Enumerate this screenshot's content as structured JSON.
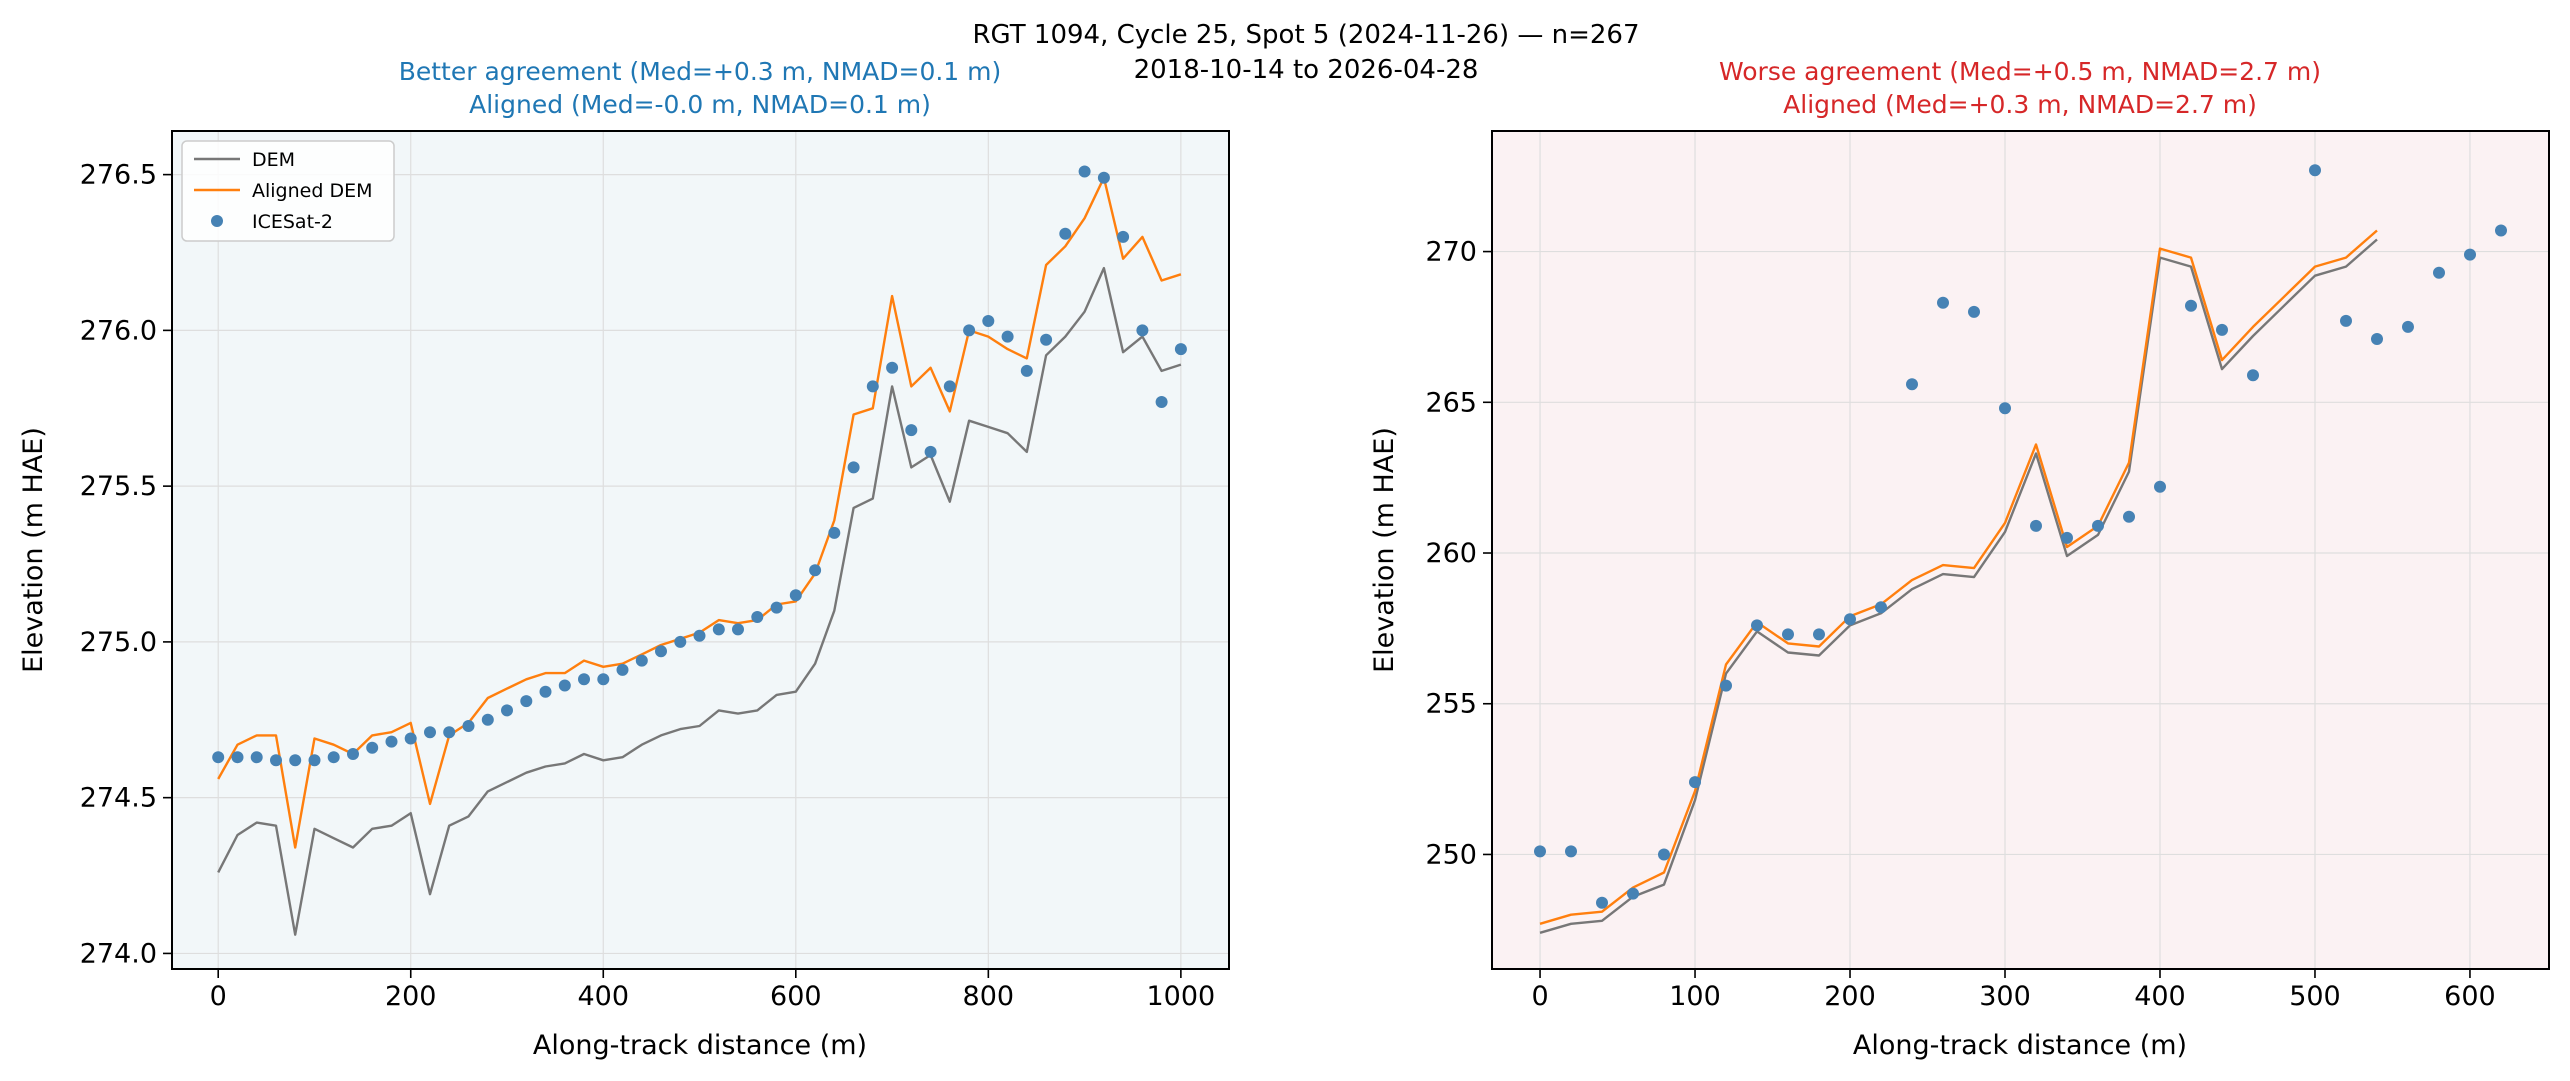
{
  "figure": {
    "suptitle_line1": "RGT 1094, Cycle 25, Spot 5 (2024-11-26) — n=267",
    "suptitle_line2": "2018-10-14 to 2026-04-28"
  },
  "colors": {
    "dem": "#777777",
    "aligned_dem": "#ff7f0e",
    "icesat": "#4682b4",
    "better_title": "#1f77b4",
    "worse_title": "#d62728",
    "left_bg": "#f2f7f9",
    "right_bg": "#fbf2f3",
    "grid": "#dedede"
  },
  "chart_data": [
    {
      "type": "line",
      "title_line1": "Better agreement (Med=+0.3 m, NMAD=0.1 m)",
      "title_line2": "Aligned (Med=-0.0 m, NMAD=0.1 m)",
      "xlabel": "Along-track distance (m)",
      "ylabel": "Elevation (m HAE)",
      "xlim": [
        -48,
        1050
      ],
      "ylim": [
        273.95,
        276.64
      ],
      "xticks": [
        0,
        200,
        400,
        600,
        800,
        1000
      ],
      "yticks": [
        274.0,
        274.5,
        275.0,
        275.5,
        276.0,
        276.5
      ],
      "ytick_labels": [
        "274.0",
        "274.5",
        "275.0",
        "275.5",
        "276.0",
        "276.5"
      ],
      "grid": true,
      "legend": {
        "position": "top-left",
        "entries": [
          "DEM",
          "Aligned DEM",
          "ICESat-2"
        ]
      },
      "x": [
        0,
        20,
        40,
        60,
        80,
        100,
        120,
        140,
        160,
        180,
        200,
        220,
        240,
        260,
        280,
        300,
        320,
        340,
        360,
        380,
        400,
        420,
        440,
        460,
        480,
        500,
        520,
        540,
        560,
        580,
        600,
        620,
        640,
        660,
        680,
        700,
        720,
        740,
        760,
        780,
        800,
        820,
        840,
        860,
        880,
        900,
        920,
        940,
        960,
        980,
        1000
      ],
      "series": [
        {
          "name": "DEM",
          "style": "line",
          "values": [
            274.26,
            274.38,
            274.42,
            274.41,
            274.06,
            274.4,
            274.37,
            274.34,
            274.4,
            274.41,
            274.45,
            274.19,
            274.41,
            274.44,
            274.52,
            274.55,
            274.58,
            274.6,
            274.61,
            274.64,
            274.62,
            274.63,
            274.67,
            274.7,
            274.72,
            274.73,
            274.78,
            274.77,
            274.78,
            274.83,
            274.84,
            274.93,
            275.1,
            275.43,
            275.46,
            275.82,
            275.56,
            275.6,
            275.45,
            275.71,
            275.69,
            275.67,
            275.61,
            275.92,
            275.98,
            276.06,
            276.2,
            275.93,
            275.98,
            275.87,
            275.89
          ]
        },
        {
          "name": "Aligned DEM",
          "style": "line",
          "values": [
            274.56,
            274.67,
            274.7,
            274.7,
            274.34,
            274.69,
            274.67,
            274.64,
            274.7,
            274.71,
            274.74,
            274.48,
            274.7,
            274.74,
            274.82,
            274.85,
            274.88,
            274.9,
            274.9,
            274.94,
            274.92,
            274.93,
            274.96,
            274.99,
            275.01,
            275.03,
            275.07,
            275.06,
            275.07,
            275.12,
            275.13,
            275.22,
            275.39,
            275.73,
            275.75,
            276.11,
            275.82,
            275.88,
            275.74,
            276.0,
            275.98,
            275.94,
            275.91,
            276.21,
            276.27,
            276.36,
            276.49,
            276.23,
            276.3,
            276.16,
            276.18
          ]
        },
        {
          "name": "ICESat-2",
          "style": "scatter",
          "values": [
            274.63,
            274.63,
            274.63,
            274.62,
            274.62,
            274.62,
            274.63,
            274.64,
            274.66,
            274.68,
            274.69,
            274.71,
            274.71,
            274.73,
            274.75,
            274.78,
            274.81,
            274.84,
            274.86,
            274.88,
            274.88,
            274.91,
            274.94,
            274.97,
            275.0,
            275.02,
            275.04,
            275.04,
            275.08,
            275.11,
            275.15,
            275.23,
            275.35,
            275.56,
            275.82,
            275.88,
            275.68,
            275.61,
            275.82,
            276.0,
            276.03,
            275.98,
            275.87,
            275.97,
            276.31,
            276.51,
            276.49,
            276.3,
            276.0,
            275.77,
            275.94
          ]
        }
      ]
    },
    {
      "type": "line",
      "title_line1": "Worse agreement (Med=+0.5 m, NMAD=2.7 m)",
      "title_line2": "Aligned (Med=+0.3 m, NMAD=2.7 m)",
      "xlabel": "Along-track distance (m)",
      "ylabel": "Elevation (m HAE)",
      "xlim": [
        -31,
        651
      ],
      "ylim": [
        246.2,
        274.0
      ],
      "xticks": [
        0,
        100,
        200,
        300,
        400,
        500,
        600
      ],
      "yticks": [
        250,
        255,
        260,
        265,
        270
      ],
      "ytick_labels": [
        "250",
        "255",
        "260",
        "265",
        "270"
      ],
      "grid": true,
      "series": [
        {
          "name": "DEM",
          "style": "line",
          "x": [
            0,
            20,
            40,
            60,
            80,
            100,
            120,
            140,
            160,
            180,
            200,
            220,
            240,
            260,
            280,
            300,
            320,
            340,
            360,
            380,
            400,
            420,
            440,
            460,
            480,
            500,
            520,
            540
          ],
          "values": [
            247.4,
            247.7,
            247.8,
            248.6,
            249.0,
            251.8,
            256.0,
            257.4,
            256.7,
            256.6,
            257.6,
            258.0,
            258.8,
            259.3,
            259.2,
            260.7,
            263.3,
            259.9,
            260.6,
            262.7,
            269.8,
            269.5,
            266.1,
            267.2,
            268.2,
            269.2,
            269.5,
            270.4
          ]
        },
        {
          "name": "Aligned DEM",
          "style": "line",
          "x": [
            0,
            20,
            40,
            60,
            80,
            100,
            120,
            140,
            160,
            180,
            200,
            220,
            240,
            260,
            280,
            300,
            320,
            340,
            360,
            380,
            400,
            420,
            440,
            460,
            480,
            500,
            520,
            540
          ],
          "values": [
            247.7,
            248.0,
            248.1,
            248.9,
            249.4,
            252.1,
            256.3,
            257.7,
            257.0,
            256.9,
            257.9,
            258.3,
            259.1,
            259.6,
            259.5,
            261.0,
            263.6,
            260.2,
            260.9,
            263.0,
            270.1,
            269.8,
            266.4,
            267.5,
            268.5,
            269.5,
            269.8,
            270.7
          ]
        },
        {
          "name": "ICESat-2",
          "style": "scatter",
          "x": [
            0,
            20,
            40,
            60,
            80,
            100,
            120,
            140,
            160,
            180,
            200,
            220,
            240,
            260,
            280,
            300,
            320,
            340,
            360,
            380,
            400,
            420,
            440,
            460,
            500,
            520,
            540,
            560,
            580,
            600,
            620
          ],
          "values": [
            250.1,
            250.1,
            248.4,
            248.7,
            250.0,
            252.4,
            255.6,
            257.6,
            257.3,
            257.3,
            257.8,
            258.2,
            265.6,
            268.3,
            268.0,
            264.8,
            260.9,
            260.5,
            260.9,
            261.2,
            262.2,
            268.2,
            267.4,
            265.9,
            272.7,
            267.7,
            267.1,
            267.5,
            269.3,
            269.9,
            270.7
          ]
        }
      ]
    }
  ]
}
